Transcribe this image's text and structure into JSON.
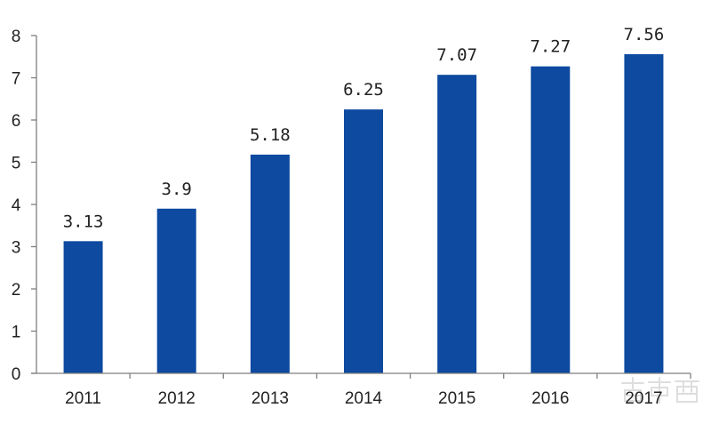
{
  "chart_data": {
    "type": "bar",
    "categories": [
      "2011",
      "2012",
      "2013",
      "2014",
      "2015",
      "2016",
      "2017"
    ],
    "values": [
      3.13,
      3.9,
      5.18,
      6.25,
      7.07,
      7.27,
      7.56
    ],
    "data_labels": [
      "3.13",
      "3.9",
      "5.18",
      "6.25",
      "7.07",
      "7.27",
      "7.56"
    ],
    "title": "",
    "xlabel": "",
    "ylabel": "",
    "ylim": [
      0,
      8
    ],
    "yticks": [
      0,
      1,
      2,
      3,
      4,
      5,
      6,
      7,
      8
    ],
    "grid": false,
    "bar_color": "#0d4aa0",
    "axis_color": "#7f7f7f"
  },
  "watermark": "智东西"
}
